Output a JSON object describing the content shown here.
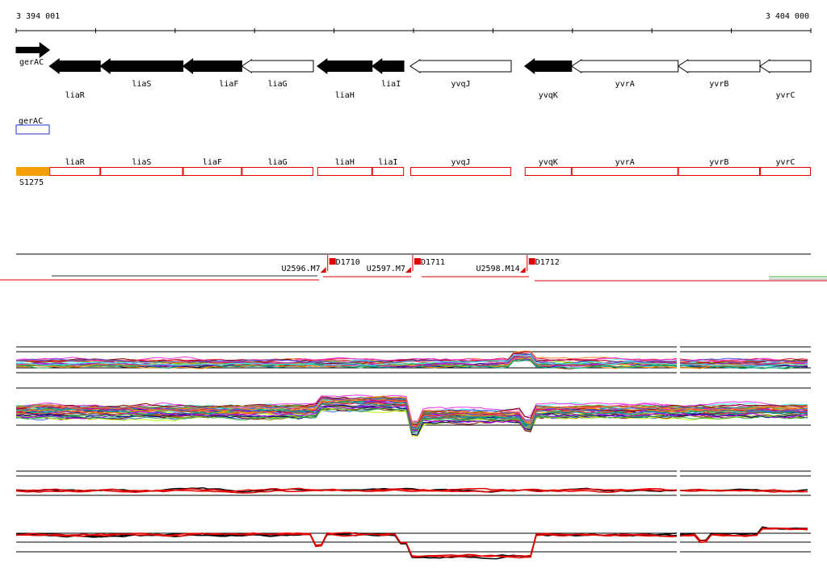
{
  "ruler": {
    "start_label": "3 394 001",
    "end_label": "3 404 000",
    "start": 3394001,
    "end": 3404000
  },
  "genes": [
    {
      "name": "gerAC",
      "strand": "+",
      "filled": true,
      "start": 3394001,
      "end": 3394420
    },
    {
      "name": "liaR",
      "strand": "-",
      "filled": true,
      "start": 3394420,
      "end": 3395060
    },
    {
      "name": "liaS",
      "strand": "-",
      "filled": true,
      "start": 3395060,
      "end": 3396100
    },
    {
      "name": "liaF",
      "strand": "-",
      "filled": true,
      "start": 3396100,
      "end": 3396840
    },
    {
      "name": "liaG",
      "strand": "-",
      "filled": false,
      "start": 3396840,
      "end": 3397740
    },
    {
      "name": "liaH",
      "strand": "-",
      "filled": true,
      "start": 3397790,
      "end": 3398480
    },
    {
      "name": "liaI",
      "strand": "-",
      "filled": true,
      "start": 3398480,
      "end": 3398880
    },
    {
      "name": "yvqJ",
      "strand": "-",
      "filled": false,
      "start": 3398960,
      "end": 3400230
    },
    {
      "name": "yvqK",
      "strand": "-",
      "filled": true,
      "start": 3400400,
      "end": 3400990
    },
    {
      "name": "yvrA",
      "strand": "-",
      "filled": false,
      "start": 3400990,
      "end": 3402330
    },
    {
      "name": "yvrB",
      "strand": "-",
      "filled": false,
      "start": 3402330,
      "end": 3403360
    },
    {
      "name": "yvrC",
      "strand": "-",
      "filled": false,
      "start": 3403360,
      "end": 3404000
    }
  ],
  "blue_feature": {
    "name": "gerAC"
  },
  "orange_feature": {
    "name": "S1275"
  },
  "segments": [
    {
      "name": "U2596.M7",
      "start": 3394001,
      "end": 3397910
    },
    {
      "name": "D1710",
      "start": 3397910,
      "end": 3398880
    },
    {
      "name": "U2597.M7",
      "start": 3398880,
      "end": 3398980
    },
    {
      "name": "D1711",
      "start": 3398980,
      "end": 3400270
    },
    {
      "name": "U2598.M14",
      "start": 3400270,
      "end": 3400420
    },
    {
      "name": "D1712",
      "start": 3400420,
      "end": 3404000
    }
  ],
  "colors": {
    "gene_fill": "#000000",
    "gene_outline": "#000000",
    "blue_box": "#2233cc",
    "orange_box": "#f5a00a",
    "red": "#e00000",
    "green": "#33aa33"
  }
}
